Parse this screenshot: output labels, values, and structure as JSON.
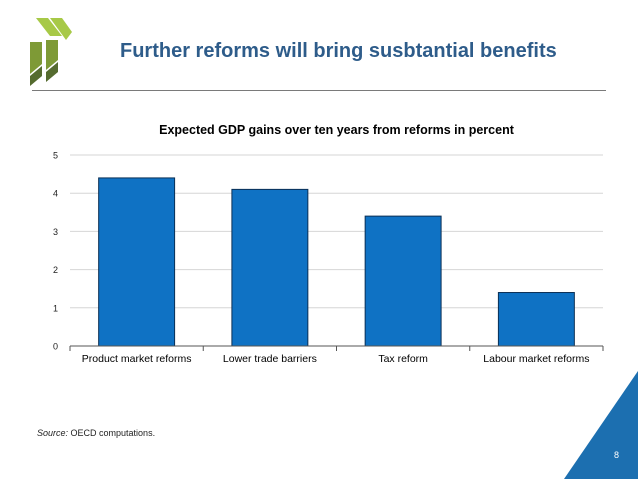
{
  "slide": {
    "title": "Further reforms will bring susbtantial benefits",
    "source_label": "Source:",
    "source_text": " OECD computations.",
    "page_number": "8"
  },
  "colors": {
    "title": "#2e5c8a",
    "bar": "#0f72c4",
    "bar_edge": "#0a2f55",
    "corner": "#1c6fb0",
    "logo_light": "#a7c947",
    "logo_dark": "#556b2f"
  },
  "chart_data": {
    "type": "bar",
    "title": "Expected GDP gains over ten years from reforms in percent",
    "categories": [
      "Product market reforms",
      "Lower trade barriers",
      "Tax reform",
      "Labour market reforms"
    ],
    "values": [
      4.4,
      4.1,
      3.4,
      1.4
    ],
    "ylim": [
      0,
      5
    ],
    "yticks": [
      0,
      1,
      2,
      3,
      4,
      5
    ],
    "xlabel": "",
    "ylabel": "",
    "grid": true
  }
}
